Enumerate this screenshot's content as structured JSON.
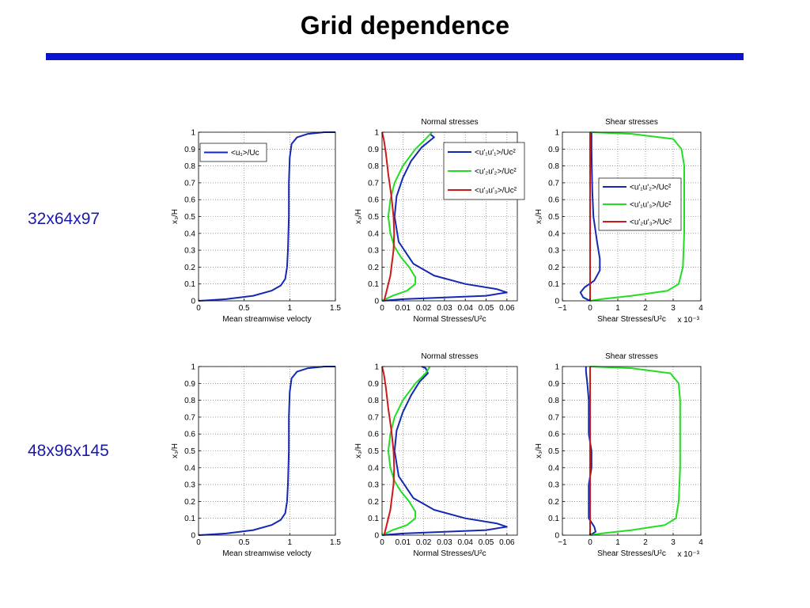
{
  "slide": {
    "title": "Grid dependence",
    "row_labels": [
      "32x64x97",
      "48x96x145"
    ],
    "colors": {
      "rule": "#0a14d0",
      "label": "#1a1aa8",
      "blue": "#1428b4",
      "green": "#22dd22",
      "red": "#cc1a1a"
    }
  },
  "chart_data": [
    {
      "id": "r0c0",
      "type": "line",
      "title": "",
      "xlabel": "Mean streamwise velocty",
      "ylabel": "x₃/H",
      "xlim": [
        0,
        1.5
      ],
      "ylim": [
        0,
        1
      ],
      "grid": true,
      "xticks": [
        "0",
        "0.5",
        "1",
        "1.5"
      ],
      "yticks": [
        "0",
        "0.1",
        "0.2",
        "0.3",
        "0.4",
        "0.5",
        "0.6",
        "0.7",
        "0.8",
        "0.9",
        "1"
      ],
      "legend": {
        "position": "top-left"
      },
      "series": [
        {
          "name": "<u₁>/Uc",
          "color": "#1428b4",
          "show_legend": true,
          "points": [
            [
              0,
              0
            ],
            [
              0.3,
              0.01
            ],
            [
              0.6,
              0.03
            ],
            [
              0.8,
              0.06
            ],
            [
              0.9,
              0.09
            ],
            [
              0.95,
              0.13
            ],
            [
              0.97,
              0.2
            ],
            [
              0.98,
              0.3
            ],
            [
              0.99,
              0.5
            ],
            [
              0.99,
              0.7
            ],
            [
              1.0,
              0.85
            ],
            [
              1.02,
              0.93
            ],
            [
              1.08,
              0.97
            ],
            [
              1.2,
              0.99
            ],
            [
              1.38,
              1.0
            ],
            [
              1.5,
              1.0
            ]
          ]
        }
      ]
    },
    {
      "id": "r0c1",
      "type": "line",
      "title": "Normal stresses",
      "xlabel": "Normal Stresses/U²c",
      "ylabel": "x₃/H",
      "xlim": [
        0,
        0.065
      ],
      "ylim": [
        0,
        1
      ],
      "grid": true,
      "xticks": [
        "0",
        "0.01",
        "0.02",
        "0.03",
        "0.04",
        "0.05",
        "0.06"
      ],
      "yticks": [
        "0",
        "0.1",
        "0.2",
        "0.3",
        "0.4",
        "0.5",
        "0.6",
        "0.7",
        "0.8",
        "0.9",
        "1"
      ],
      "legend": {
        "position": "top-right"
      },
      "series": [
        {
          "name": "<u'₁u'₁>/Uc²",
          "color": "#1428b4",
          "show_legend": true,
          "points": [
            [
              0,
              0
            ],
            [
              0.01,
              0.01
            ],
            [
              0.03,
              0.02
            ],
            [
              0.05,
              0.03
            ],
            [
              0.06,
              0.05
            ],
            [
              0.055,
              0.07
            ],
            [
              0.04,
              0.1
            ],
            [
              0.025,
              0.15
            ],
            [
              0.015,
              0.22
            ],
            [
              0.008,
              0.35
            ],
            [
              0.006,
              0.5
            ],
            [
              0.007,
              0.62
            ],
            [
              0.01,
              0.73
            ],
            [
              0.014,
              0.83
            ],
            [
              0.019,
              0.91
            ],
            [
              0.024,
              0.96
            ],
            [
              0.025,
              0.97
            ],
            [
              0.023,
              0.99
            ]
          ]
        },
        {
          "name": "<u'₂u'₂>/Uc²",
          "color": "#22dd22",
          "show_legend": true,
          "points": [
            [
              0,
              0
            ],
            [
              0.005,
              0.03
            ],
            [
              0.012,
              0.06
            ],
            [
              0.016,
              0.1
            ],
            [
              0.016,
              0.14
            ],
            [
              0.013,
              0.2
            ],
            [
              0.009,
              0.26
            ],
            [
              0.006,
              0.32
            ],
            [
              0.004,
              0.4
            ],
            [
              0.003,
              0.5
            ],
            [
              0.004,
              0.6
            ],
            [
              0.006,
              0.7
            ],
            [
              0.01,
              0.8
            ],
            [
              0.016,
              0.9
            ],
            [
              0.021,
              0.96
            ],
            [
              0.024,
              1.0
            ]
          ]
        },
        {
          "name": "<u'₃u'₃>/Uc²",
          "color": "#cc1a1a",
          "show_legend": true,
          "points": [
            [
              0.001,
              0
            ],
            [
              0.002,
              0.05
            ],
            [
              0.004,
              0.15
            ],
            [
              0.0055,
              0.3
            ],
            [
              0.0058,
              0.4
            ],
            [
              0.0055,
              0.5
            ],
            [
              0.0045,
              0.62
            ],
            [
              0.003,
              0.75
            ],
            [
              0.0018,
              0.88
            ],
            [
              0.0008,
              0.96
            ],
            [
              0,
              1.0
            ]
          ]
        }
      ]
    },
    {
      "id": "r0c2",
      "type": "line",
      "title": "Shear stresses",
      "xlabel": "Shear Stresses/U²c",
      "ylabel": "x₃/H",
      "x_multiplier": "x 10⁻³",
      "xlim": [
        -1,
        4
      ],
      "ylim": [
        0,
        1
      ],
      "grid": true,
      "xticks": [
        "−1",
        "0",
        "1",
        "2",
        "3",
        "4"
      ],
      "yticks": [
        "0",
        "0.1",
        "0.2",
        "0.3",
        "0.4",
        "0.5",
        "0.6",
        "0.7",
        "0.8",
        "0.9",
        "1"
      ],
      "legend": {
        "position": "center-right"
      },
      "series": [
        {
          "name": "<u'₁u'₂>/Uc²",
          "color": "#1428b4",
          "show_legend": true,
          "points": [
            [
              0,
              0
            ],
            [
              -0.25,
              0.02
            ],
            [
              -0.35,
              0.05
            ],
            [
              -0.2,
              0.08
            ],
            [
              0.15,
              0.12
            ],
            [
              0.35,
              0.18
            ],
            [
              0.35,
              0.25
            ],
            [
              0.25,
              0.35
            ],
            [
              0.12,
              0.5
            ],
            [
              0.08,
              0.65
            ],
            [
              0.06,
              0.8
            ],
            [
              0.05,
              0.9
            ],
            [
              0.05,
              1.0
            ]
          ]
        },
        {
          "name": "<u'₁u'₃>/Uc²",
          "color": "#22dd22",
          "show_legend": true,
          "points": [
            [
              0,
              0
            ],
            [
              0.4,
              0.01
            ],
            [
              1.5,
              0.03
            ],
            [
              2.8,
              0.06
            ],
            [
              3.2,
              0.1
            ],
            [
              3.35,
              0.2
            ],
            [
              3.4,
              0.4
            ],
            [
              3.4,
              0.6
            ],
            [
              3.4,
              0.8
            ],
            [
              3.3,
              0.9
            ],
            [
              3.0,
              0.96
            ],
            [
              1.5,
              0.99
            ],
            [
              0,
              1.0
            ]
          ]
        },
        {
          "name": "<u'₂u'₃>/Uc²",
          "color": "#cc1a1a",
          "show_legend": true,
          "points": [
            [
              0,
              0
            ],
            [
              0,
              1.0
            ]
          ]
        }
      ]
    },
    {
      "id": "r1c0",
      "type": "line",
      "title": "",
      "xlabel": "Mean streamwise velocty",
      "ylabel": "x₃/H",
      "xlim": [
        0,
        1.5
      ],
      "ylim": [
        0,
        1
      ],
      "grid": true,
      "xticks": [
        "0",
        "0.5",
        "1",
        "1.5"
      ],
      "yticks": [
        "0",
        "0.1",
        "0.2",
        "0.3",
        "0.4",
        "0.5",
        "0.6",
        "0.7",
        "0.8",
        "0.9",
        "1"
      ],
      "series": [
        {
          "name": "",
          "color": "#1428b4",
          "show_legend": false,
          "points": [
            [
              0,
              0
            ],
            [
              0.3,
              0.01
            ],
            [
              0.6,
              0.03
            ],
            [
              0.8,
              0.06
            ],
            [
              0.9,
              0.09
            ],
            [
              0.95,
              0.13
            ],
            [
              0.97,
              0.2
            ],
            [
              0.98,
              0.3
            ],
            [
              0.99,
              0.5
            ],
            [
              0.99,
              0.7
            ],
            [
              1.0,
              0.85
            ],
            [
              1.02,
              0.93
            ],
            [
              1.08,
              0.97
            ],
            [
              1.2,
              0.99
            ],
            [
              1.38,
              1.0
            ],
            [
              1.5,
              1.0
            ]
          ]
        }
      ]
    },
    {
      "id": "r1c1",
      "type": "line",
      "title": "Normal stresses",
      "xlabel": "Normal Stresses/U²c",
      "ylabel": "x₃/H",
      "xlim": [
        0,
        0.065
      ],
      "ylim": [
        0,
        1
      ],
      "grid": true,
      "xticks": [
        "0",
        "0.01",
        "0.02",
        "0.03",
        "0.04",
        "0.05",
        "0.06"
      ],
      "yticks": [
        "0",
        "0.1",
        "0.2",
        "0.3",
        "0.4",
        "0.5",
        "0.6",
        "0.7",
        "0.8",
        "0.9",
        "1"
      ],
      "series": [
        {
          "name": "",
          "color": "#1428b4",
          "show_legend": false,
          "points": [
            [
              0,
              0
            ],
            [
              0.01,
              0.01
            ],
            [
              0.03,
              0.02
            ],
            [
              0.05,
              0.03
            ],
            [
              0.06,
              0.05
            ],
            [
              0.055,
              0.07
            ],
            [
              0.04,
              0.1
            ],
            [
              0.025,
              0.15
            ],
            [
              0.015,
              0.22
            ],
            [
              0.008,
              0.35
            ],
            [
              0.006,
              0.5
            ],
            [
              0.007,
              0.62
            ],
            [
              0.01,
              0.73
            ],
            [
              0.014,
              0.83
            ],
            [
              0.018,
              0.91
            ],
            [
              0.022,
              0.96
            ],
            [
              0.021,
              0.99
            ],
            [
              0.019,
              1.0
            ]
          ]
        },
        {
          "name": "",
          "color": "#22dd22",
          "show_legend": false,
          "points": [
            [
              0,
              0
            ],
            [
              0.005,
              0.03
            ],
            [
              0.012,
              0.06
            ],
            [
              0.016,
              0.1
            ],
            [
              0.016,
              0.14
            ],
            [
              0.013,
              0.2
            ],
            [
              0.009,
              0.26
            ],
            [
              0.006,
              0.32
            ],
            [
              0.004,
              0.4
            ],
            [
              0.003,
              0.5
            ],
            [
              0.004,
              0.6
            ],
            [
              0.006,
              0.7
            ],
            [
              0.01,
              0.8
            ],
            [
              0.016,
              0.9
            ],
            [
              0.021,
              0.96
            ],
            [
              0.023,
              1.0
            ]
          ]
        },
        {
          "name": "",
          "color": "#cc1a1a",
          "show_legend": false,
          "points": [
            [
              0.001,
              0
            ],
            [
              0.002,
              0.05
            ],
            [
              0.004,
              0.15
            ],
            [
              0.0055,
              0.3
            ],
            [
              0.0058,
              0.4
            ],
            [
              0.0055,
              0.5
            ],
            [
              0.0045,
              0.62
            ],
            [
              0.003,
              0.75
            ],
            [
              0.0018,
              0.88
            ],
            [
              0.0008,
              0.96
            ],
            [
              0,
              1.0
            ]
          ]
        }
      ]
    },
    {
      "id": "r1c2",
      "type": "line",
      "title": "Shear stresses",
      "xlabel": "Shear Stresses/U²c",
      "ylabel": "x₃/H",
      "x_multiplier": "x 10⁻³",
      "xlim": [
        -1,
        4
      ],
      "ylim": [
        0,
        1
      ],
      "grid": true,
      "xticks": [
        "−1",
        "0",
        "1",
        "2",
        "3",
        "4"
      ],
      "yticks": [
        "0",
        "0.1",
        "0.2",
        "0.3",
        "0.4",
        "0.5",
        "0.6",
        "0.7",
        "0.8",
        "0.9",
        "1"
      ],
      "series": [
        {
          "name": "",
          "color": "#1428b4",
          "show_legend": false,
          "points": [
            [
              0,
              0
            ],
            [
              0.2,
              0.02
            ],
            [
              0.15,
              0.05
            ],
            [
              -0.05,
              0.1
            ],
            [
              -0.05,
              0.2
            ],
            [
              -0.05,
              0.3
            ],
            [
              0.05,
              0.4
            ],
            [
              0.05,
              0.5
            ],
            [
              -0.05,
              0.6
            ],
            [
              -0.05,
              0.7
            ],
            [
              -0.05,
              0.8
            ],
            [
              -0.1,
              0.9
            ],
            [
              -0.15,
              0.97
            ],
            [
              -0.15,
              1.0
            ]
          ]
        },
        {
          "name": "",
          "color": "#22dd22",
          "show_legend": false,
          "points": [
            [
              0,
              0
            ],
            [
              0.4,
              0.01
            ],
            [
              1.5,
              0.03
            ],
            [
              2.7,
              0.06
            ],
            [
              3.1,
              0.1
            ],
            [
              3.2,
              0.2
            ],
            [
              3.25,
              0.4
            ],
            [
              3.25,
              0.6
            ],
            [
              3.25,
              0.8
            ],
            [
              3.2,
              0.9
            ],
            [
              2.9,
              0.96
            ],
            [
              1.5,
              0.99
            ],
            [
              0,
              1.0
            ]
          ]
        },
        {
          "name": "",
          "color": "#cc1a1a",
          "show_legend": false,
          "points": [
            [
              0,
              0
            ],
            [
              0,
              1.0
            ]
          ]
        }
      ]
    }
  ]
}
